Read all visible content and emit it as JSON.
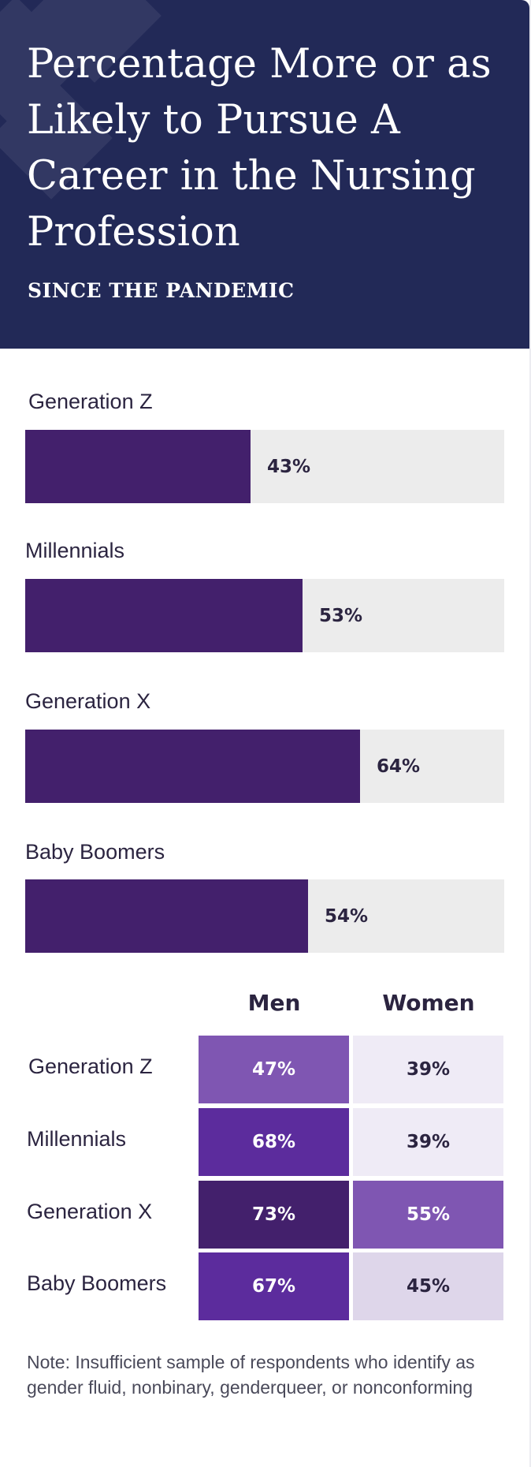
{
  "header": {
    "title": "Percentage More or as Likely to Pursue A Career in the Nursing Profession",
    "subtitle": "SINCE THE PANDEMIC"
  },
  "colors": {
    "header_bg": "#222957",
    "bar_fill": "#43206c",
    "bar_track": "#ececec",
    "text_dark": "#2b2440"
  },
  "chart_data": [
    {
      "type": "bar",
      "orientation": "horizontal",
      "categories": [
        "Generation Z",
        "Millennials",
        "Generation X",
        "Baby Boomers"
      ],
      "values": [
        43,
        53,
        64,
        54
      ],
      "value_labels": [
        "43%",
        "53%",
        "64%",
        "54%"
      ],
      "unit": "%",
      "xlim": [
        0,
        100
      ]
    },
    {
      "type": "heatmap",
      "columns": [
        "Men",
        "Women"
      ],
      "rows": [
        "Generation Z",
        "Millennials",
        "Generation X",
        "Baby Boomers"
      ],
      "values": [
        [
          47,
          39
        ],
        [
          68,
          39
        ],
        [
          73,
          55
        ],
        [
          67,
          45
        ]
      ],
      "cell_labels": [
        [
          "47%",
          "39%"
        ],
        [
          "68%",
          "39%"
        ],
        [
          "73%",
          "55%"
        ],
        [
          "67%",
          "45%"
        ]
      ],
      "cell_colors": [
        [
          "#7f56b2",
          "#efebf6"
        ],
        [
          "#5c2c9d",
          "#efebf6"
        ],
        [
          "#43206c",
          "#7f56b2"
        ],
        [
          "#5c2c9d",
          "#ded6ea"
        ]
      ],
      "text_colors": [
        [
          "#ffffff",
          "#2b2440"
        ],
        [
          "#ffffff",
          "#2b2440"
        ],
        [
          "#ffffff",
          "#ffffff"
        ],
        [
          "#ffffff",
          "#2b2440"
        ]
      ]
    }
  ],
  "note": "Note: Insufficient sample of respondents who identify as gender fluid, nonbinary, genderqueer, or nonconforming"
}
